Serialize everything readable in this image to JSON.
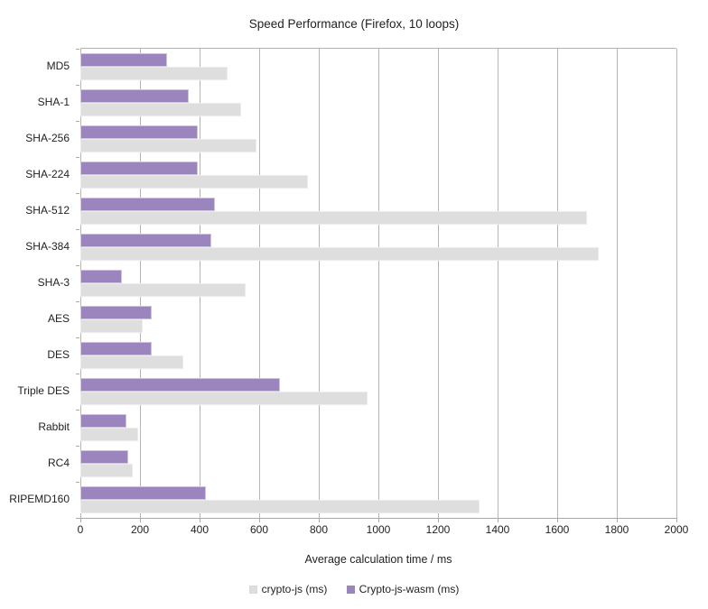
{
  "chart_data": {
    "type": "bar",
    "orientation": "horizontal",
    "title": "Speed Performance (Firefox, 10 loops)",
    "xlabel": "Average calculation time / ms",
    "categories": [
      "MD5",
      "SHA-1",
      "SHA-256",
      "SHA-224",
      "SHA-512",
      "SHA-384",
      "SHA-3",
      "AES",
      "DES",
      "Triple DES",
      "Rabbit",
      "RC4",
      "RIPEMD160"
    ],
    "series": [
      {
        "name": "crypto-js (ms)",
        "color": "#dedede",
        "values": [
          495,
          540,
          590,
          765,
          1700,
          1740,
          555,
          210,
          345,
          965,
          195,
          175,
          1340
        ]
      },
      {
        "name": "Crypto-js-wasm (ms)",
        "color": "#9a85bd",
        "values": [
          290,
          365,
          395,
          395,
          450,
          440,
          140,
          240,
          240,
          670,
          155,
          160,
          420
        ]
      }
    ],
    "x_axis": {
      "min": 0,
      "max": 2000,
      "tick_step": 200,
      "tick_labels": [
        "0",
        "200",
        "400",
        "600",
        "800",
        "1000",
        "1200",
        "1400",
        "1600",
        "1800",
        "2000"
      ]
    },
    "legend_position": "bottom",
    "grid": true,
    "gridline_color": "#b6b6b6",
    "text_color": "#222222"
  }
}
